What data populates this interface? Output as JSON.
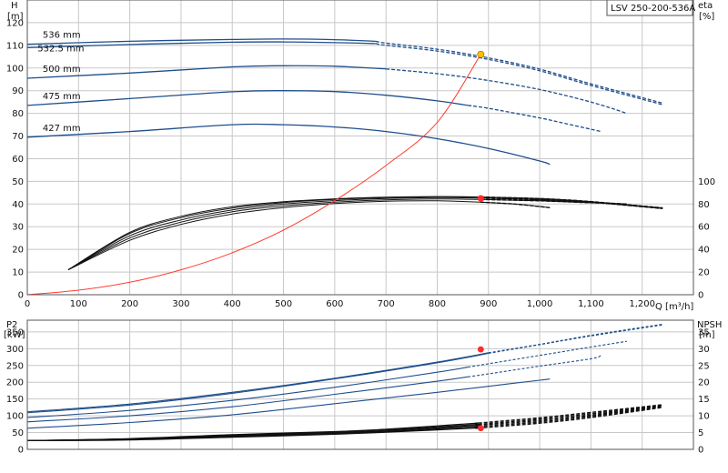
{
  "model_label": "LSV 250-200-536A",
  "colors": {
    "grid": "#c8c8c8",
    "frame": "#555555",
    "blue": "#1f4e8c",
    "black": "#111111",
    "system_curve": "#ff3b2f",
    "duty_point_head": "#ffc000",
    "duty_point_red": "#ff2a2a"
  },
  "chart_data": [
    {
      "type": "line",
      "panel": "top",
      "left_axis": {
        "label_top": "H",
        "label_unit": "[m]",
        "ticks": [
          "0",
          "10",
          "20",
          "30",
          "40",
          "50",
          "60",
          "70",
          "80",
          "90",
          "100",
          "110",
          "120"
        ],
        "range": [
          0,
          130
        ]
      },
      "right_axis": {
        "label_top": "eta",
        "label_unit": "[%]",
        "ticks": [
          "0",
          "20",
          "40",
          "60",
          "80",
          "100"
        ],
        "range": [
          0,
          100
        ],
        "maps_to_left": [
          0,
          50
        ]
      },
      "x_axis": {
        "label": "Q [m³/h]",
        "ticks": [
          "0",
          "100",
          "200",
          "300",
          "400",
          "500",
          "600",
          "700",
          "800",
          "900",
          "1,000",
          "1,100",
          "1,200"
        ],
        "range": [
          0,
          1300
        ]
      },
      "grid": true,
      "head_curves": [
        {
          "name": "536 mm",
          "x": [
            0,
            200,
            400,
            500,
            600,
            680,
            700,
            800,
            900,
            1000,
            1100,
            1240
          ],
          "y": [
            110.5,
            111.8,
            112.6,
            112.8,
            112.5,
            111.8,
            111.0,
            108.3,
            104.5,
            99.5,
            93.0,
            84.5
          ],
          "dashed_from": 680
        },
        {
          "name": "532.5 mm",
          "x": [
            0,
            220,
            400,
            500,
            600,
            680,
            700,
            800,
            900,
            1000,
            1100,
            1240
          ],
          "y": [
            109.0,
            110.5,
            111.4,
            111.5,
            111.2,
            110.8,
            110.0,
            107.5,
            103.8,
            98.8,
            92.3,
            83.8
          ],
          "dashed_from": 680
        },
        {
          "name": "500 mm",
          "x": [
            0,
            200,
            400,
            500,
            600,
            700,
            800,
            900,
            1000,
            1100,
            1170
          ],
          "y": [
            95.5,
            97.8,
            100.5,
            101.0,
            100.8,
            99.6,
            97.5,
            94.5,
            90.5,
            85.0,
            80.0
          ],
          "dashed_from": 700
        },
        {
          "name": "475 mm",
          "x": [
            0,
            200,
            400,
            500,
            600,
            700,
            800,
            900,
            1000,
            1050,
            1120
          ],
          "y": [
            83.5,
            86.5,
            89.5,
            90.0,
            89.6,
            88.0,
            85.5,
            82.2,
            78.0,
            75.5,
            72.0
          ],
          "dashed_from": 860
        },
        {
          "name": "427 mm",
          "x": [
            0,
            200,
            400,
            500,
            600,
            700,
            800,
            900,
            1000,
            1020
          ],
          "y": [
            69.5,
            72.0,
            75.0,
            75.0,
            74.0,
            72.0,
            68.8,
            64.5,
            59.0,
            57.5
          ],
          "dashed_from": null
        }
      ],
      "efficiency_curves": [
        {
          "x": [
            80,
            200,
            300,
            400,
            500,
            600,
            700,
            800,
            885,
            950,
            1020
          ],
          "y": [
            11,
            24,
            31,
            35.6,
            38.4,
            40.2,
            41.2,
            41.4,
            40.8,
            40.0,
            38.4
          ]
        },
        {
          "x": [
            80,
            200,
            300,
            400,
            500,
            600,
            700,
            800,
            885,
            1000,
            1120
          ],
          "y": [
            11,
            25,
            32,
            36.6,
            39.2,
            40.8,
            41.8,
            42.2,
            42.0,
            41.4,
            40.4
          ]
        },
        {
          "x": [
            80,
            200,
            300,
            400,
            500,
            600,
            700,
            800,
            885,
            1000,
            1170
          ],
          "y": [
            11,
            26,
            33,
            37.4,
            40.0,
            41.5,
            42.4,
            42.8,
            42.6,
            41.8,
            40.0
          ]
        },
        {
          "x": [
            80,
            200,
            300,
            400,
            500,
            600,
            700,
            800,
            885,
            1000,
            1100,
            1240
          ],
          "y": [
            11,
            27,
            34,
            38.2,
            40.6,
            42.0,
            42.8,
            43.2,
            43.0,
            42.2,
            40.8,
            38.0
          ]
        },
        {
          "x": [
            80,
            200,
            300,
            400,
            500,
            600,
            700,
            800,
            885,
            1000,
            1100,
            1240
          ],
          "y": [
            11,
            27.5,
            34.6,
            38.8,
            41.0,
            42.3,
            43.0,
            43.3,
            43.1,
            42.4,
            41.1,
            38.3
          ]
        }
      ],
      "system_curve": {
        "x": [
          0,
          100,
          200,
          300,
          400,
          500,
          600,
          700,
          800,
          885
        ],
        "y": [
          0,
          2.0,
          5.5,
          11.0,
          18.5,
          28.5,
          41.5,
          57.0,
          76.0,
          106.0
        ]
      },
      "duty_points": [
        {
          "x": 885,
          "y": 106,
          "kind": "head"
        },
        {
          "x": 885,
          "y": 42.5,
          "kind": "efficiency"
        }
      ],
      "curve_labels": [
        {
          "text": "536 mm",
          "x": 30,
          "y": 114.5
        },
        {
          "text": "532.5 mm",
          "x": 20,
          "y": 108.5
        },
        {
          "text": "500 mm",
          "x": 30,
          "y": 99.5
        },
        {
          "text": "475 mm",
          "x": 30,
          "y": 87.5
        },
        {
          "text": "427 mm",
          "x": 30,
          "y": 73.5
        }
      ]
    },
    {
      "type": "line",
      "panel": "bottom",
      "left_axis": {
        "label_top": "P2",
        "label_unit": "[kW]",
        "ticks": [
          "0",
          "50",
          "100",
          "150",
          "200",
          "250",
          "300",
          "350"
        ],
        "range": [
          0,
          385
        ]
      },
      "right_axis": {
        "label_top": "NPSH",
        "label_unit": "[m]",
        "ticks": [
          "0",
          "5",
          "10",
          "15",
          "20",
          "25",
          "30",
          "35"
        ],
        "range": [
          0,
          38.5
        ]
      },
      "x_axis": {
        "ticks": [],
        "range": [
          0,
          1300
        ]
      },
      "grid": true,
      "power_curves": [
        {
          "x": [
            0,
            200,
            400,
            600,
            800,
            900,
            1000,
            1100,
            1240
          ],
          "y": [
            112,
            135,
            170,
            212,
            260,
            288,
            313,
            340,
            373
          ],
          "dashed_from": 900
        },
        {
          "x": [
            0,
            200,
            400,
            600,
            800,
            900,
            1000,
            1100,
            1240
          ],
          "y": [
            109,
            132,
            167,
            210,
            258,
            286,
            312,
            338,
            371
          ],
          "dashed_from": 900
        },
        {
          "x": [
            0,
            200,
            400,
            600,
            800,
            900,
            1000,
            1100,
            1170
          ],
          "y": [
            95,
            116,
            146,
            185,
            230,
            255,
            280,
            305,
            322
          ],
          "dashed_from": 860
        },
        {
          "x": [
            0,
            200,
            400,
            600,
            800,
            900,
            1000,
            1100,
            1120
          ],
          "y": [
            82,
            100,
            127,
            164,
            203,
            225,
            248,
            270,
            280
          ],
          "dashed_from": 860
        },
        {
          "x": [
            0,
            200,
            400,
            600,
            800,
            900,
            1000,
            1020
          ],
          "y": [
            63,
            80,
            103,
            136,
            170,
            188,
            206,
            210
          ],
          "dashed_from": null
        }
      ],
      "npsh_curves": [
        {
          "x": [
            0,
            200,
            400,
            600,
            700,
            800,
            885,
            1000,
            1100,
            1240
          ],
          "y": [
            2.6,
            2.8,
            3.6,
            4.5,
            5.1,
            5.8,
            6.4,
            7.8,
            9.5,
            12.5
          ],
          "dashed_from": 880
        },
        {
          "x": [
            0,
            200,
            400,
            600,
            700,
            800,
            885,
            1000,
            1100,
            1240
          ],
          "y": [
            2.6,
            2.9,
            3.8,
            4.7,
            5.3,
            6.1,
            6.8,
            8.2,
            9.9,
            12.7
          ],
          "dashed_from": 880
        },
        {
          "x": [
            0,
            200,
            400,
            600,
            700,
            800,
            885,
            1000,
            1100,
            1240
          ],
          "y": [
            2.6,
            3.0,
            4.0,
            4.9,
            5.5,
            6.4,
            7.2,
            8.6,
            10.2,
            12.9
          ],
          "dashed_from": 880
        },
        {
          "x": [
            0,
            200,
            400,
            600,
            700,
            800,
            885,
            1000,
            1100,
            1240
          ],
          "y": [
            2.6,
            3.1,
            4.2,
            5.1,
            5.8,
            6.7,
            7.5,
            9.0,
            10.6,
            13.1
          ],
          "dashed_from": 880
        },
        {
          "x": [
            0,
            200,
            400,
            600,
            700,
            800,
            885,
            1000,
            1100,
            1240
          ],
          "y": [
            2.6,
            3.2,
            4.4,
            5.3,
            6.0,
            7.0,
            7.9,
            9.4,
            11.0,
            13.3
          ],
          "dashed_from": 880
        }
      ],
      "duty_points": [
        {
          "x": 885,
          "y": 298,
          "axis": "left",
          "kind": "power"
        },
        {
          "x": 885,
          "y": 6.3,
          "axis": "right",
          "kind": "npsh"
        }
      ]
    }
  ]
}
